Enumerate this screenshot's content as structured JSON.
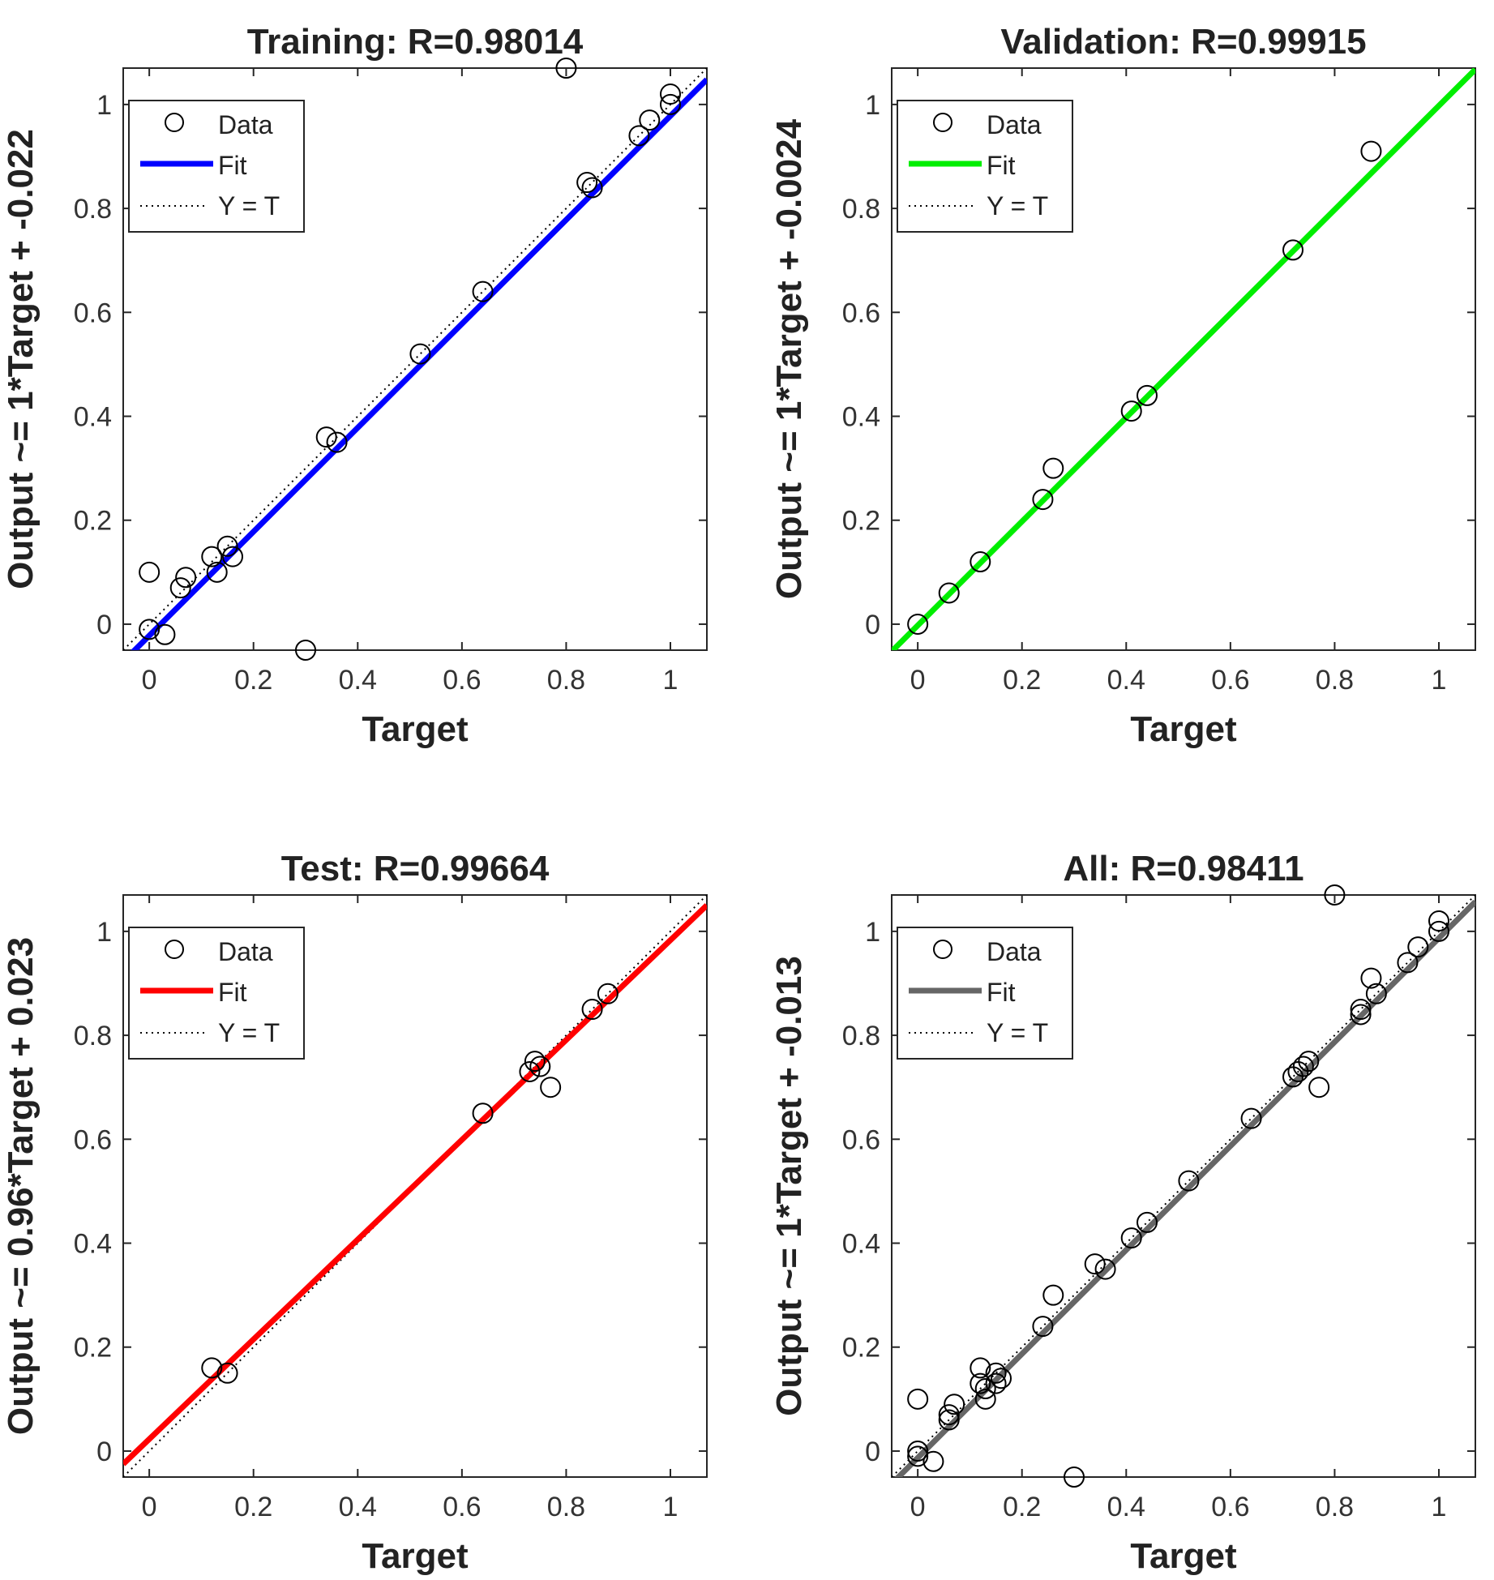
{
  "chart_data": [
    {
      "type": "scatter",
      "title": "Training: R=0.98014",
      "xlabel": "Target",
      "ylabel": "Output ~= 1*Target + -0.022",
      "xlim": [
        -0.05,
        1.07
      ],
      "ylim": [
        -0.05,
        1.07
      ],
      "xticks": [
        "0",
        "0.2",
        "0.4",
        "0.6",
        "0.8",
        "1"
      ],
      "yticks": [
        "0",
        "0.2",
        "0.4",
        "0.6",
        "0.8",
        "1"
      ],
      "legend": {
        "position": "top-left",
        "entries": [
          "Data",
          "Fit",
          "Y = T"
        ]
      },
      "fit": {
        "slope": 1,
        "intercept": -0.022,
        "color": "#0000ff"
      },
      "data": {
        "x": [
          0.0,
          0.0,
          0.03,
          0.06,
          0.07,
          0.12,
          0.13,
          0.15,
          0.16,
          0.3,
          0.34,
          0.36,
          0.52,
          0.64,
          0.8,
          0.84,
          0.85,
          0.94,
          0.96,
          1.0,
          1.0
        ],
        "y": [
          0.1,
          -0.01,
          -0.02,
          0.07,
          0.09,
          0.13,
          0.1,
          0.15,
          0.13,
          -0.05,
          0.36,
          0.35,
          0.52,
          0.64,
          1.07,
          0.85,
          0.84,
          0.94,
          0.97,
          1.02,
          1.0
        ]
      }
    },
    {
      "type": "scatter",
      "title": "Validation: R=0.99915",
      "xlabel": "Target",
      "ylabel": "Output ~= 1*Target + -0.0024",
      "xlim": [
        -0.05,
        1.07
      ],
      "ylim": [
        -0.05,
        1.07
      ],
      "xticks": [
        "0",
        "0.2",
        "0.4",
        "0.6",
        "0.8",
        "1"
      ],
      "yticks": [
        "0",
        "0.2",
        "0.4",
        "0.6",
        "0.8",
        "1"
      ],
      "legend": {
        "position": "top-left",
        "entries": [
          "Data",
          "Fit",
          "Y = T"
        ]
      },
      "fit": {
        "slope": 1,
        "intercept": -0.0024,
        "color": "#00ee00"
      },
      "data": {
        "x": [
          0.0,
          0.06,
          0.12,
          0.24,
          0.26,
          0.41,
          0.44,
          0.72,
          0.87
        ],
        "y": [
          0.0,
          0.06,
          0.12,
          0.24,
          0.3,
          0.41,
          0.44,
          0.72,
          0.91
        ]
      }
    },
    {
      "type": "scatter",
      "title": "Test: R=0.99664",
      "xlabel": "Target",
      "ylabel": "Output ~= 0.96*Target + 0.023",
      "xlim": [
        -0.05,
        1.07
      ],
      "ylim": [
        -0.05,
        1.07
      ],
      "xticks": [
        "0",
        "0.2",
        "0.4",
        "0.6",
        "0.8",
        "1"
      ],
      "yticks": [
        "0",
        "0.2",
        "0.4",
        "0.6",
        "0.8",
        "1"
      ],
      "legend": {
        "position": "top-left",
        "entries": [
          "Data",
          "Fit",
          "Y = T"
        ]
      },
      "fit": {
        "slope": 0.96,
        "intercept": 0.023,
        "color": "#ff0000"
      },
      "data": {
        "x": [
          0.12,
          0.15,
          0.64,
          0.73,
          0.74,
          0.75,
          0.77,
          0.85,
          0.88
        ],
        "y": [
          0.16,
          0.15,
          0.65,
          0.73,
          0.75,
          0.74,
          0.7,
          0.85,
          0.88
        ]
      }
    },
    {
      "type": "scatter",
      "title": "All: R=0.98411",
      "xlabel": "Target",
      "ylabel": "Output ~= 1*Target + -0.013",
      "xlim": [
        -0.05,
        1.07
      ],
      "ylim": [
        -0.05,
        1.07
      ],
      "xticks": [
        "0",
        "0.2",
        "0.4",
        "0.6",
        "0.8",
        "1"
      ],
      "yticks": [
        "0",
        "0.2",
        "0.4",
        "0.6",
        "0.8",
        "1"
      ],
      "legend": {
        "position": "top-left",
        "entries": [
          "Data",
          "Fit",
          "Y = T"
        ]
      },
      "fit": {
        "slope": 1,
        "intercept": -0.013,
        "color": "#666666"
      },
      "data": {
        "x": [
          0.0,
          0.0,
          0.0,
          0.03,
          0.06,
          0.06,
          0.07,
          0.12,
          0.12,
          0.13,
          0.13,
          0.15,
          0.15,
          0.16,
          0.24,
          0.26,
          0.3,
          0.34,
          0.36,
          0.41,
          0.44,
          0.52,
          0.64,
          0.72,
          0.73,
          0.74,
          0.75,
          0.77,
          0.8,
          0.85,
          0.85,
          0.87,
          0.88,
          0.94,
          0.96,
          1.0,
          1.0
        ],
        "y": [
          0.1,
          0.0,
          -0.01,
          -0.02,
          0.06,
          0.07,
          0.09,
          0.13,
          0.16,
          0.12,
          0.1,
          0.15,
          0.13,
          0.14,
          0.24,
          0.3,
          -0.05,
          0.36,
          0.35,
          0.41,
          0.44,
          0.52,
          0.64,
          0.72,
          0.73,
          0.74,
          0.75,
          0.7,
          1.07,
          0.85,
          0.84,
          0.91,
          0.88,
          0.94,
          0.97,
          1.02,
          1.0
        ]
      }
    }
  ]
}
